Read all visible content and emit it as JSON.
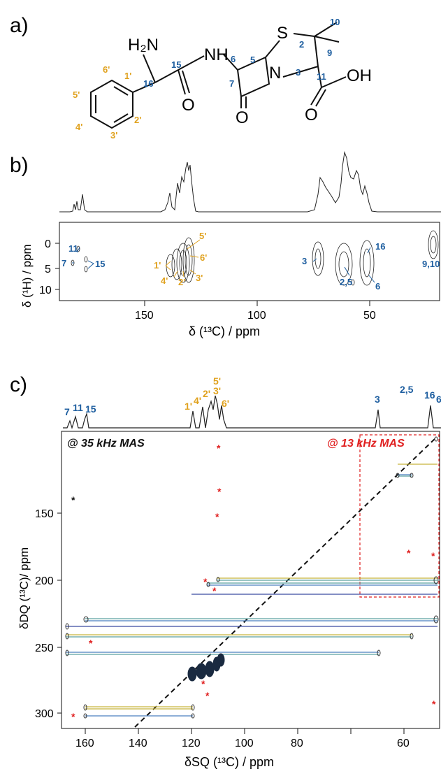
{
  "panel_a": {
    "label": "a)",
    "atoms": {
      "H2N": "H₂N",
      "NH": "NH",
      "S": "S",
      "N": "N",
      "OH": "OH",
      "O1": "O",
      "O2": "O",
      "O3": "O"
    },
    "numbers_blue": [
      "16",
      "15",
      "6",
      "5",
      "7",
      "2",
      "10",
      "9",
      "3",
      "11"
    ],
    "numbers_orange": [
      "1'",
      "2'",
      "3'",
      "4'",
      "5'",
      "6'"
    ]
  },
  "panel_b": {
    "label": "b)",
    "ylabel": "δ (¹H) / ppm",
    "xlabel": "δ (¹³C) / ppm",
    "xticks": [
      "150",
      "100",
      "50"
    ],
    "yticks": [
      "0",
      "5",
      "10"
    ],
    "annotations_blue": [
      "11",
      "7",
      "15",
      "3",
      "16",
      "2,5",
      "6",
      "9,10"
    ],
    "annotations_orange": [
      "1'",
      "5'",
      "6'",
      "4'",
      "2'",
      "3'"
    ]
  },
  "panel_c": {
    "label": "c)",
    "ylabel": "δDQ (¹³C)/ ppm",
    "xlabel": "δSQ (¹³C) / ppm",
    "xticks": [
      "160",
      "140",
      "120",
      "100",
      "80",
      "60"
    ],
    "yticks": [
      "150",
      "200",
      "250",
      "300"
    ],
    "label_35": "@ 35 kHz MAS",
    "label_13": "@ 13 kHz MAS",
    "peaks_blue": [
      "7",
      "11",
      "15",
      "3",
      "2,5",
      "16",
      "6"
    ],
    "peaks_orange": [
      "1'",
      "4'",
      "2'",
      "5'",
      "3'",
      "6'"
    ]
  },
  "chart_data": [
    {
      "type": "heatmap",
      "title": "",
      "xlabel": "δ (¹³C) / ppm",
      "ylabel": "δ (¹H) / ppm",
      "xlim": [
        180,
        25
      ],
      "ylim": [
        -3,
        12
      ],
      "peaks": [
        {
          "label": "11",
          "x": 173,
          "y": 4
        },
        {
          "label": "7",
          "x": 175,
          "y": 6
        },
        {
          "label": "15",
          "x": 170,
          "y": 6.5
        },
        {
          "label": "1'",
          "x": 134,
          "y": 6
        },
        {
          "label": "5'",
          "x": 128,
          "y": 4
        },
        {
          "label": "6'",
          "x": 126,
          "y": 5.5
        },
        {
          "label": "4'",
          "x": 131,
          "y": 7.5
        },
        {
          "label": "2'",
          "x": 129,
          "y": 8
        },
        {
          "label": "3'",
          "x": 127,
          "y": 7
        },
        {
          "label": "3",
          "x": 74,
          "y": 5
        },
        {
          "label": "2,5",
          "x": 64,
          "y": 5.5
        },
        {
          "label": "16",
          "x": 57,
          "y": 4.5
        },
        {
          "label": "6",
          "x": 56,
          "y": 6.5
        },
        {
          "label": "9,10",
          "x": 28,
          "y": 2
        }
      ]
    },
    {
      "type": "heatmap",
      "title": "",
      "xlabel": "δSQ (¹³C) / ppm",
      "ylabel": "δDQ (¹³C)/ ppm",
      "xlim": [
        176,
        54
      ],
      "ylim": [
        120,
        310
      ],
      "diagonal": true,
      "correlations": [
        {
          "y": 130,
          "x_from": 57,
          "x_to": 75
        },
        {
          "y": 138,
          "x_from": 63,
          "x_to": 75
        },
        {
          "y": 183,
          "x_from": 56,
          "x_to": 128
        },
        {
          "y": 185,
          "x_from": 56,
          "x_to": 130
        },
        {
          "y": 191,
          "x_from": 56,
          "x_to": 135
        },
        {
          "y": 223,
          "x_from": 56,
          "x_to": 170
        },
        {
          "y": 228,
          "x_from": 56,
          "x_to": 175
        },
        {
          "y": 237,
          "x_from": 63,
          "x_to": 175
        },
        {
          "y": 246,
          "x_from": 74,
          "x_to": 175
        },
        {
          "y": 296,
          "x_from": 134,
          "x_to": 170
        },
        {
          "y": 302,
          "x_from": 134,
          "x_to": 170
        }
      ]
    }
  ]
}
